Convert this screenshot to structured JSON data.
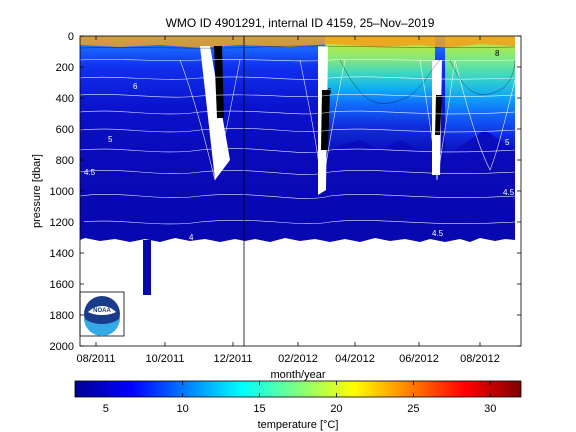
{
  "chart_data": {
    "type": "heatmap",
    "title": "WMO ID 4901291, internal ID 4159, 25–Nov–2019",
    "xlabel": "month/year",
    "ylabel": "pressure [dbar]",
    "x_ticks": [
      "08/2011",
      "10/2011",
      "12/2011",
      "02/2012",
      "04/2012",
      "06/2012",
      "08/2012"
    ],
    "y_ticks": [
      0,
      200,
      400,
      600,
      800,
      1000,
      1200,
      1400,
      1600,
      1800,
      2000
    ],
    "ylim": [
      0,
      2000
    ],
    "y_reversed": true,
    "colorbar": {
      "label": "temperature [°C]",
      "ticks": [
        5,
        10,
        15,
        20,
        25,
        30
      ],
      "range": [
        3,
        32
      ],
      "colormap": "jet"
    },
    "contour_labels": [
      "6",
      "5",
      "4.5",
      "4",
      "4.5",
      "6",
      "5",
      "4.5",
      "8"
    ],
    "vertical_marker": "12/2011",
    "typical_max_pressure": 1340,
    "deep_profile": {
      "date": "09/2011",
      "max_pressure": 1680
    },
    "cold_intrusions": [
      "11/2011",
      "12/2011",
      "03/2012",
      "07/2012",
      "08/2012"
    ],
    "logo": "NOAA"
  }
}
